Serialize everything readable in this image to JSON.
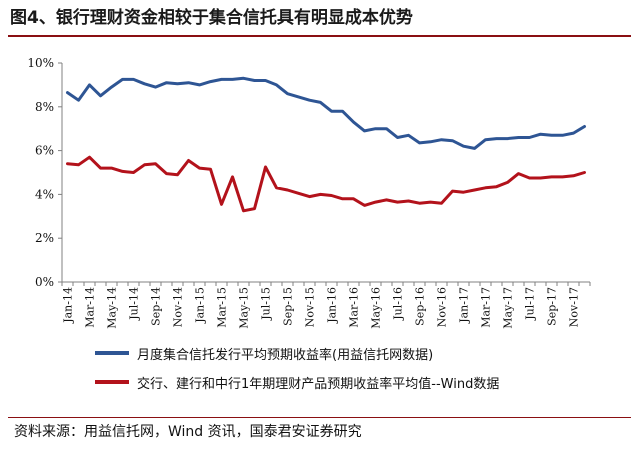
{
  "figure": {
    "title": "图4、银行理财资金相较于集合信托具有明显成本优势",
    "source": "资料来源：用益信托网，Wind 资讯，国泰君安证券研究"
  },
  "chart_data": {
    "type": "line",
    "y_ticks": [
      "0%",
      "2%",
      "4%",
      "6%",
      "8%",
      "10%"
    ],
    "ylim": [
      0,
      10
    ],
    "grid": false,
    "legend_position": "bottom",
    "x": [
      "Jan-14",
      "Feb-14",
      "Mar-14",
      "Apr-14",
      "May-14",
      "Jun-14",
      "Jul-14",
      "Aug-14",
      "Sep-14",
      "Oct-14",
      "Nov-14",
      "Dec-14",
      "Jan-15",
      "Feb-15",
      "Mar-15",
      "Apr-15",
      "May-15",
      "Jun-15",
      "Jul-15",
      "Aug-15",
      "Sep-15",
      "Oct-15",
      "Nov-15",
      "Dec-15",
      "Jan-16",
      "Feb-16",
      "Mar-16",
      "Apr-16",
      "May-16",
      "Jun-16",
      "Jul-16",
      "Aug-16",
      "Sep-16",
      "Oct-16",
      "Nov-16",
      "Dec-16",
      "Jan-17",
      "Feb-17",
      "Mar-17",
      "Apr-17",
      "May-17",
      "Jun-17",
      "Jul-17",
      "Aug-17",
      "Sep-17",
      "Oct-17",
      "Nov-17",
      "Dec-17"
    ],
    "x_tick_labels": [
      "Jan-14",
      "Mar-14",
      "May-14",
      "Jul-14",
      "Sep-14",
      "Nov-14",
      "Jan-15",
      "Mar-15",
      "May-15",
      "Jul-15",
      "Sep-15",
      "Nov-15",
      "Jan-16",
      "Mar-16",
      "May-16",
      "Jul-16",
      "Sep-16",
      "Nov-16",
      "Jan-17",
      "Mar-17",
      "May-17",
      "Jul-17",
      "Sep-17",
      "Nov-17"
    ],
    "series": [
      {
        "name": "月度集合信托发行平均预期收益率(用益信托网数据)",
        "color": "#2e5594",
        "values": [
          8.65,
          8.3,
          9.0,
          8.5,
          8.9,
          9.25,
          9.25,
          9.05,
          8.9,
          9.1,
          9.05,
          9.1,
          9.0,
          9.15,
          9.25,
          9.25,
          9.3,
          9.2,
          9.2,
          9.0,
          8.6,
          8.45,
          8.3,
          8.2,
          7.8,
          7.8,
          7.3,
          6.9,
          7.0,
          7.0,
          6.6,
          6.7,
          6.35,
          6.4,
          6.5,
          6.45,
          6.2,
          6.1,
          6.5,
          6.55,
          6.55,
          6.6,
          6.6,
          6.75,
          6.7,
          6.7,
          6.8,
          7.1
        ]
      },
      {
        "name": "交行、建行和中行1年期理财产品预期收益率平均值--Wind数据",
        "color": "#b3121b",
        "values": [
          5.4,
          5.35,
          5.7,
          5.2,
          5.2,
          5.05,
          5.0,
          5.35,
          5.4,
          4.95,
          4.9,
          5.55,
          5.2,
          5.15,
          3.55,
          4.8,
          3.25,
          3.35,
          5.25,
          4.3,
          4.2,
          4.05,
          3.9,
          4.0,
          3.95,
          3.8,
          3.8,
          3.5,
          3.65,
          3.75,
          3.65,
          3.7,
          3.6,
          3.65,
          3.6,
          4.15,
          4.1,
          4.2,
          4.3,
          4.35,
          4.55,
          4.95,
          4.75,
          4.75,
          4.8,
          4.8,
          4.85,
          5.0
        ]
      }
    ]
  }
}
